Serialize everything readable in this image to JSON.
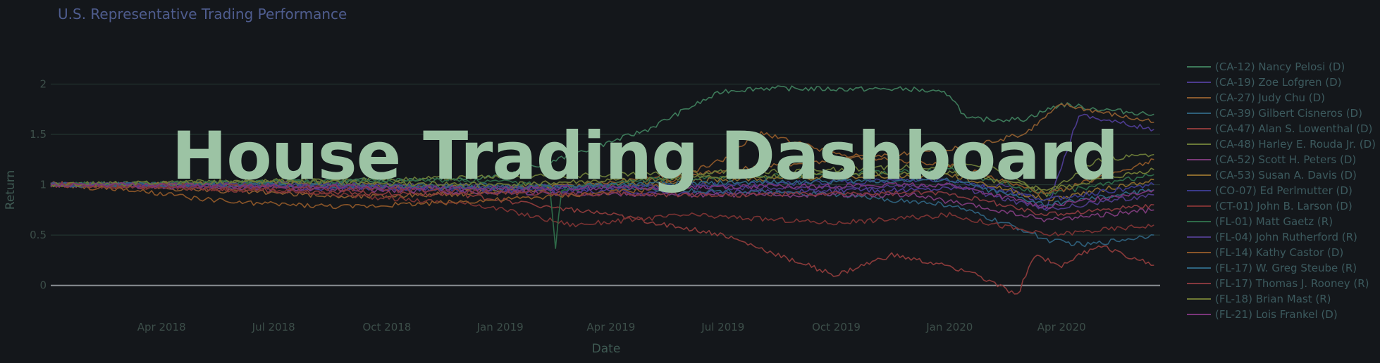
{
  "page": {
    "title": "U.S. Representative Trading Performance",
    "overlay_title": "House Trading Dashboard"
  },
  "colors": {
    "background": "#14171b",
    "grid": "#263b35",
    "zero_line": "#8a8f94",
    "title": "#4f5d8f",
    "overlay": "#9cc3a4"
  },
  "chart_data": {
    "type": "line",
    "title": "U.S. Representative Trading Performance",
    "xlabel": "Date",
    "ylabel": "Return",
    "xlim": [
      "2018-01-01",
      "2020-06-20"
    ],
    "ylim": [
      -0.1,
      2.15
    ],
    "grid": true,
    "legend_position": "right",
    "x_ticks": [
      {
        "date": "2018-04-01",
        "label": "Apr 2018"
      },
      {
        "date": "2018-07-01",
        "label": "Jul 2018"
      },
      {
        "date": "2018-10-01",
        "label": "Oct 2018"
      },
      {
        "date": "2019-01-01",
        "label": "Jan 2019"
      },
      {
        "date": "2019-04-01",
        "label": "Apr 2019"
      },
      {
        "date": "2019-07-01",
        "label": "Jul 2019"
      },
      {
        "date": "2019-10-01",
        "label": "Oct 2019"
      },
      {
        "date": "2020-01-01",
        "label": "Jan 2020"
      },
      {
        "date": "2020-04-01",
        "label": "Apr 2020"
      }
    ],
    "y_ticks": [
      {
        "value": 0,
        "label": "0"
      },
      {
        "value": 0.5,
        "label": "0.5"
      },
      {
        "value": 1,
        "label": "1"
      },
      {
        "value": 1.5,
        "label": "1.5"
      },
      {
        "value": 2,
        "label": "2"
      }
    ],
    "series": [
      {
        "name": "(CA-12)  Nancy Pelosi (D)",
        "color": "#3d7a5a",
        "x": [
          "2018-01-01",
          "2018-06-01",
          "2018-10-01",
          "2019-01-01",
          "2019-03-01",
          "2019-05-01",
          "2019-06-01",
          "2019-07-01",
          "2019-08-01",
          "2019-10-01",
          "2019-12-01",
          "2020-01-01",
          "2020-01-15",
          "2020-03-01",
          "2020-04-01",
          "2020-05-01",
          "2020-06-15"
        ],
        "y": [
          1.0,
          1.02,
          1.05,
          1.08,
          1.3,
          1.55,
          1.75,
          1.93,
          1.96,
          1.95,
          1.95,
          1.9,
          1.65,
          1.65,
          1.8,
          1.75,
          1.7
        ]
      },
      {
        "name": "(CA-19)  Zoe Lofgren (D)",
        "color": "#4c3b8f",
        "x": [
          "2018-01-01",
          "2018-06-01",
          "2018-12-01",
          "2019-06-01",
          "2019-12-01",
          "2020-02-15",
          "2020-03-20",
          "2020-04-15",
          "2020-06-15"
        ],
        "y": [
          1.0,
          0.98,
          0.95,
          0.92,
          0.95,
          1.0,
          0.75,
          1.7,
          1.55
        ]
      },
      {
        "name": "(CA-27)  Judy Chu (D)",
        "color": "#8a5a2e",
        "x": [
          "2018-01-01",
          "2018-05-01",
          "2018-09-01",
          "2019-01-01",
          "2019-06-01",
          "2019-10-01",
          "2020-01-01",
          "2020-03-01",
          "2020-04-01",
          "2020-06-15"
        ],
        "y": [
          1.02,
          0.95,
          0.88,
          0.92,
          1.1,
          1.25,
          1.35,
          1.5,
          1.8,
          1.62
        ]
      },
      {
        "name": "(CA-39)  Gilbert Cisneros (D)",
        "color": "#2e5f7a",
        "x": [
          "2018-01-01",
          "2018-08-01",
          "2019-03-01",
          "2019-10-01",
          "2020-01-01",
          "2020-03-01",
          "2020-03-20",
          "2020-04-20",
          "2020-06-15"
        ],
        "y": [
          1.0,
          1.01,
          0.98,
          0.9,
          0.8,
          0.55,
          0.45,
          0.4,
          0.5
        ]
      },
      {
        "name": "(CA-47)  Alan S. Lowenthal (D)",
        "color": "#8a3a3a",
        "x": [
          "2018-01-01",
          "2018-06-01",
          "2018-12-01",
          "2019-04-01",
          "2019-07-01",
          "2019-08-15",
          "2019-10-01",
          "2019-11-15",
          "2020-01-15",
          "2020-02-25",
          "2020-03-10",
          "2020-04-01",
          "2020-05-01",
          "2020-06-15"
        ],
        "y": [
          1.0,
          0.95,
          0.9,
          0.7,
          0.5,
          0.3,
          0.1,
          0.3,
          0.15,
          -0.1,
          0.3,
          0.2,
          0.4,
          0.2
        ]
      },
      {
        "name": "(CA-48)  Harley E. Rouda Jr. (D)",
        "color": "#6a7a38",
        "x": [
          "2018-01-01",
          "2018-09-01",
          "2019-04-01",
          "2019-10-01",
          "2020-02-01",
          "2020-03-20",
          "2020-05-01",
          "2020-06-15"
        ],
        "y": [
          1.0,
          1.05,
          1.1,
          1.15,
          1.2,
          0.9,
          1.25,
          1.3
        ]
      },
      {
        "name": "(CA-52)  Scott H. Peters (D)",
        "color": "#7a3a78",
        "x": [
          "2018-01-01",
          "2018-06-01",
          "2018-12-01",
          "2019-06-01",
          "2019-12-01",
          "2020-03-20",
          "2020-06-15"
        ],
        "y": [
          1.0,
          0.97,
          0.93,
          0.9,
          0.9,
          0.65,
          0.75
        ]
      },
      {
        "name": "(CA-53)  Susan A. Davis (D)",
        "color": "#8a6a2e",
        "x": [
          "2018-01-01",
          "2018-07-01",
          "2019-01-01",
          "2019-07-01",
          "2020-01-01",
          "2020-03-20",
          "2020-06-15"
        ],
        "y": [
          1.0,
          1.02,
          0.96,
          1.05,
          1.1,
          0.85,
          1.05
        ]
      },
      {
        "name": "(CO-07)  Ed Perlmutter (D)",
        "color": "#3a3a8a",
        "x": [
          "2018-01-01",
          "2018-07-01",
          "2019-01-01",
          "2019-07-01",
          "2020-01-01",
          "2020-03-20",
          "2020-06-15"
        ],
        "y": [
          1.0,
          0.99,
          0.95,
          1.0,
          1.05,
          0.85,
          1.0
        ]
      },
      {
        "name": "(CT-01)  John B. Larson (D)",
        "color": "#7a3232",
        "x": [
          "2018-01-01",
          "2018-07-01",
          "2018-12-15",
          "2019-03-01",
          "2019-06-01",
          "2019-10-01",
          "2020-01-01",
          "2020-03-20",
          "2020-06-15"
        ],
        "y": [
          1.0,
          0.95,
          0.8,
          0.6,
          0.7,
          0.62,
          0.7,
          0.5,
          0.6
        ]
      },
      {
        "name": "(FL-01)  Matt Gaetz (R)",
        "color": "#2e6a48",
        "x": [
          "2018-01-01",
          "2018-06-01",
          "2018-12-01",
          "2019-02-10",
          "2019-02-15",
          "2019-02-20",
          "2019-05-01",
          "2019-10-01",
          "2020-01-01",
          "2020-03-20",
          "2020-06-15"
        ],
        "y": [
          1.0,
          1.02,
          1.05,
          1.0,
          0.38,
          0.95,
          1.05,
          1.1,
          1.15,
          0.9,
          1.1
        ]
      },
      {
        "name": "(FL-04)  John Rutherford (R)",
        "color": "#4c3a85",
        "x": [
          "2018-01-01",
          "2018-08-01",
          "2019-03-01",
          "2019-09-01",
          "2020-01-01",
          "2020-03-20",
          "2020-06-15"
        ],
        "y": [
          1.0,
          1.0,
          0.98,
          0.97,
          1.0,
          0.75,
          0.9
        ]
      },
      {
        "name": "(FL-14)  Kathy Castor (D)",
        "color": "#8a5528",
        "x": [
          "2018-01-01",
          "2018-03-01",
          "2018-06-01",
          "2018-09-01",
          "2019-01-01",
          "2019-05-01",
          "2019-07-01",
          "2019-08-01",
          "2019-10-01",
          "2020-01-01",
          "2020-03-20",
          "2020-06-15"
        ],
        "y": [
          1.0,
          0.95,
          0.82,
          0.78,
          0.85,
          0.95,
          1.25,
          1.52,
          1.3,
          1.2,
          0.9,
          1.25
        ]
      },
      {
        "name": "(FL-17)  W. Greg Steube (R)",
        "color": "#2e6580",
        "x": [
          "2018-01-01",
          "2018-07-01",
          "2019-01-01",
          "2019-07-01",
          "2020-01-01",
          "2020-03-20",
          "2020-06-15"
        ],
        "y": [
          1.0,
          1.0,
          0.97,
          1.02,
          1.05,
          0.8,
          0.95
        ]
      },
      {
        "name": "(FL-17)  Thomas J. Rooney (R)",
        "color": "#85383e",
        "x": [
          "2018-01-01",
          "2018-07-01",
          "2019-01-01",
          "2019-07-01",
          "2020-01-01",
          "2020-03-20",
          "2020-06-15"
        ],
        "y": [
          1.0,
          0.98,
          0.92,
          0.9,
          0.92,
          0.7,
          0.8
        ]
      },
      {
        "name": "(FL-18)  Brian Mast (R)",
        "color": "#6f7a35",
        "x": [
          "2018-01-01",
          "2018-07-01",
          "2019-01-01",
          "2019-07-01",
          "2020-01-01",
          "2020-03-20",
          "2020-06-15"
        ],
        "y": [
          1.0,
          1.03,
          1.0,
          1.08,
          1.12,
          0.95,
          1.15
        ]
      },
      {
        "name": "(FL-21)  Lois Frankel (D)",
        "color": "#7a357a",
        "x": [
          "2018-01-01",
          "2018-07-01",
          "2019-01-01",
          "2019-07-01",
          "2020-01-01",
          "2020-03-20",
          "2020-06-15"
        ],
        "y": [
          1.0,
          0.99,
          0.96,
          0.98,
          1.0,
          0.78,
          0.95
        ]
      }
    ]
  }
}
